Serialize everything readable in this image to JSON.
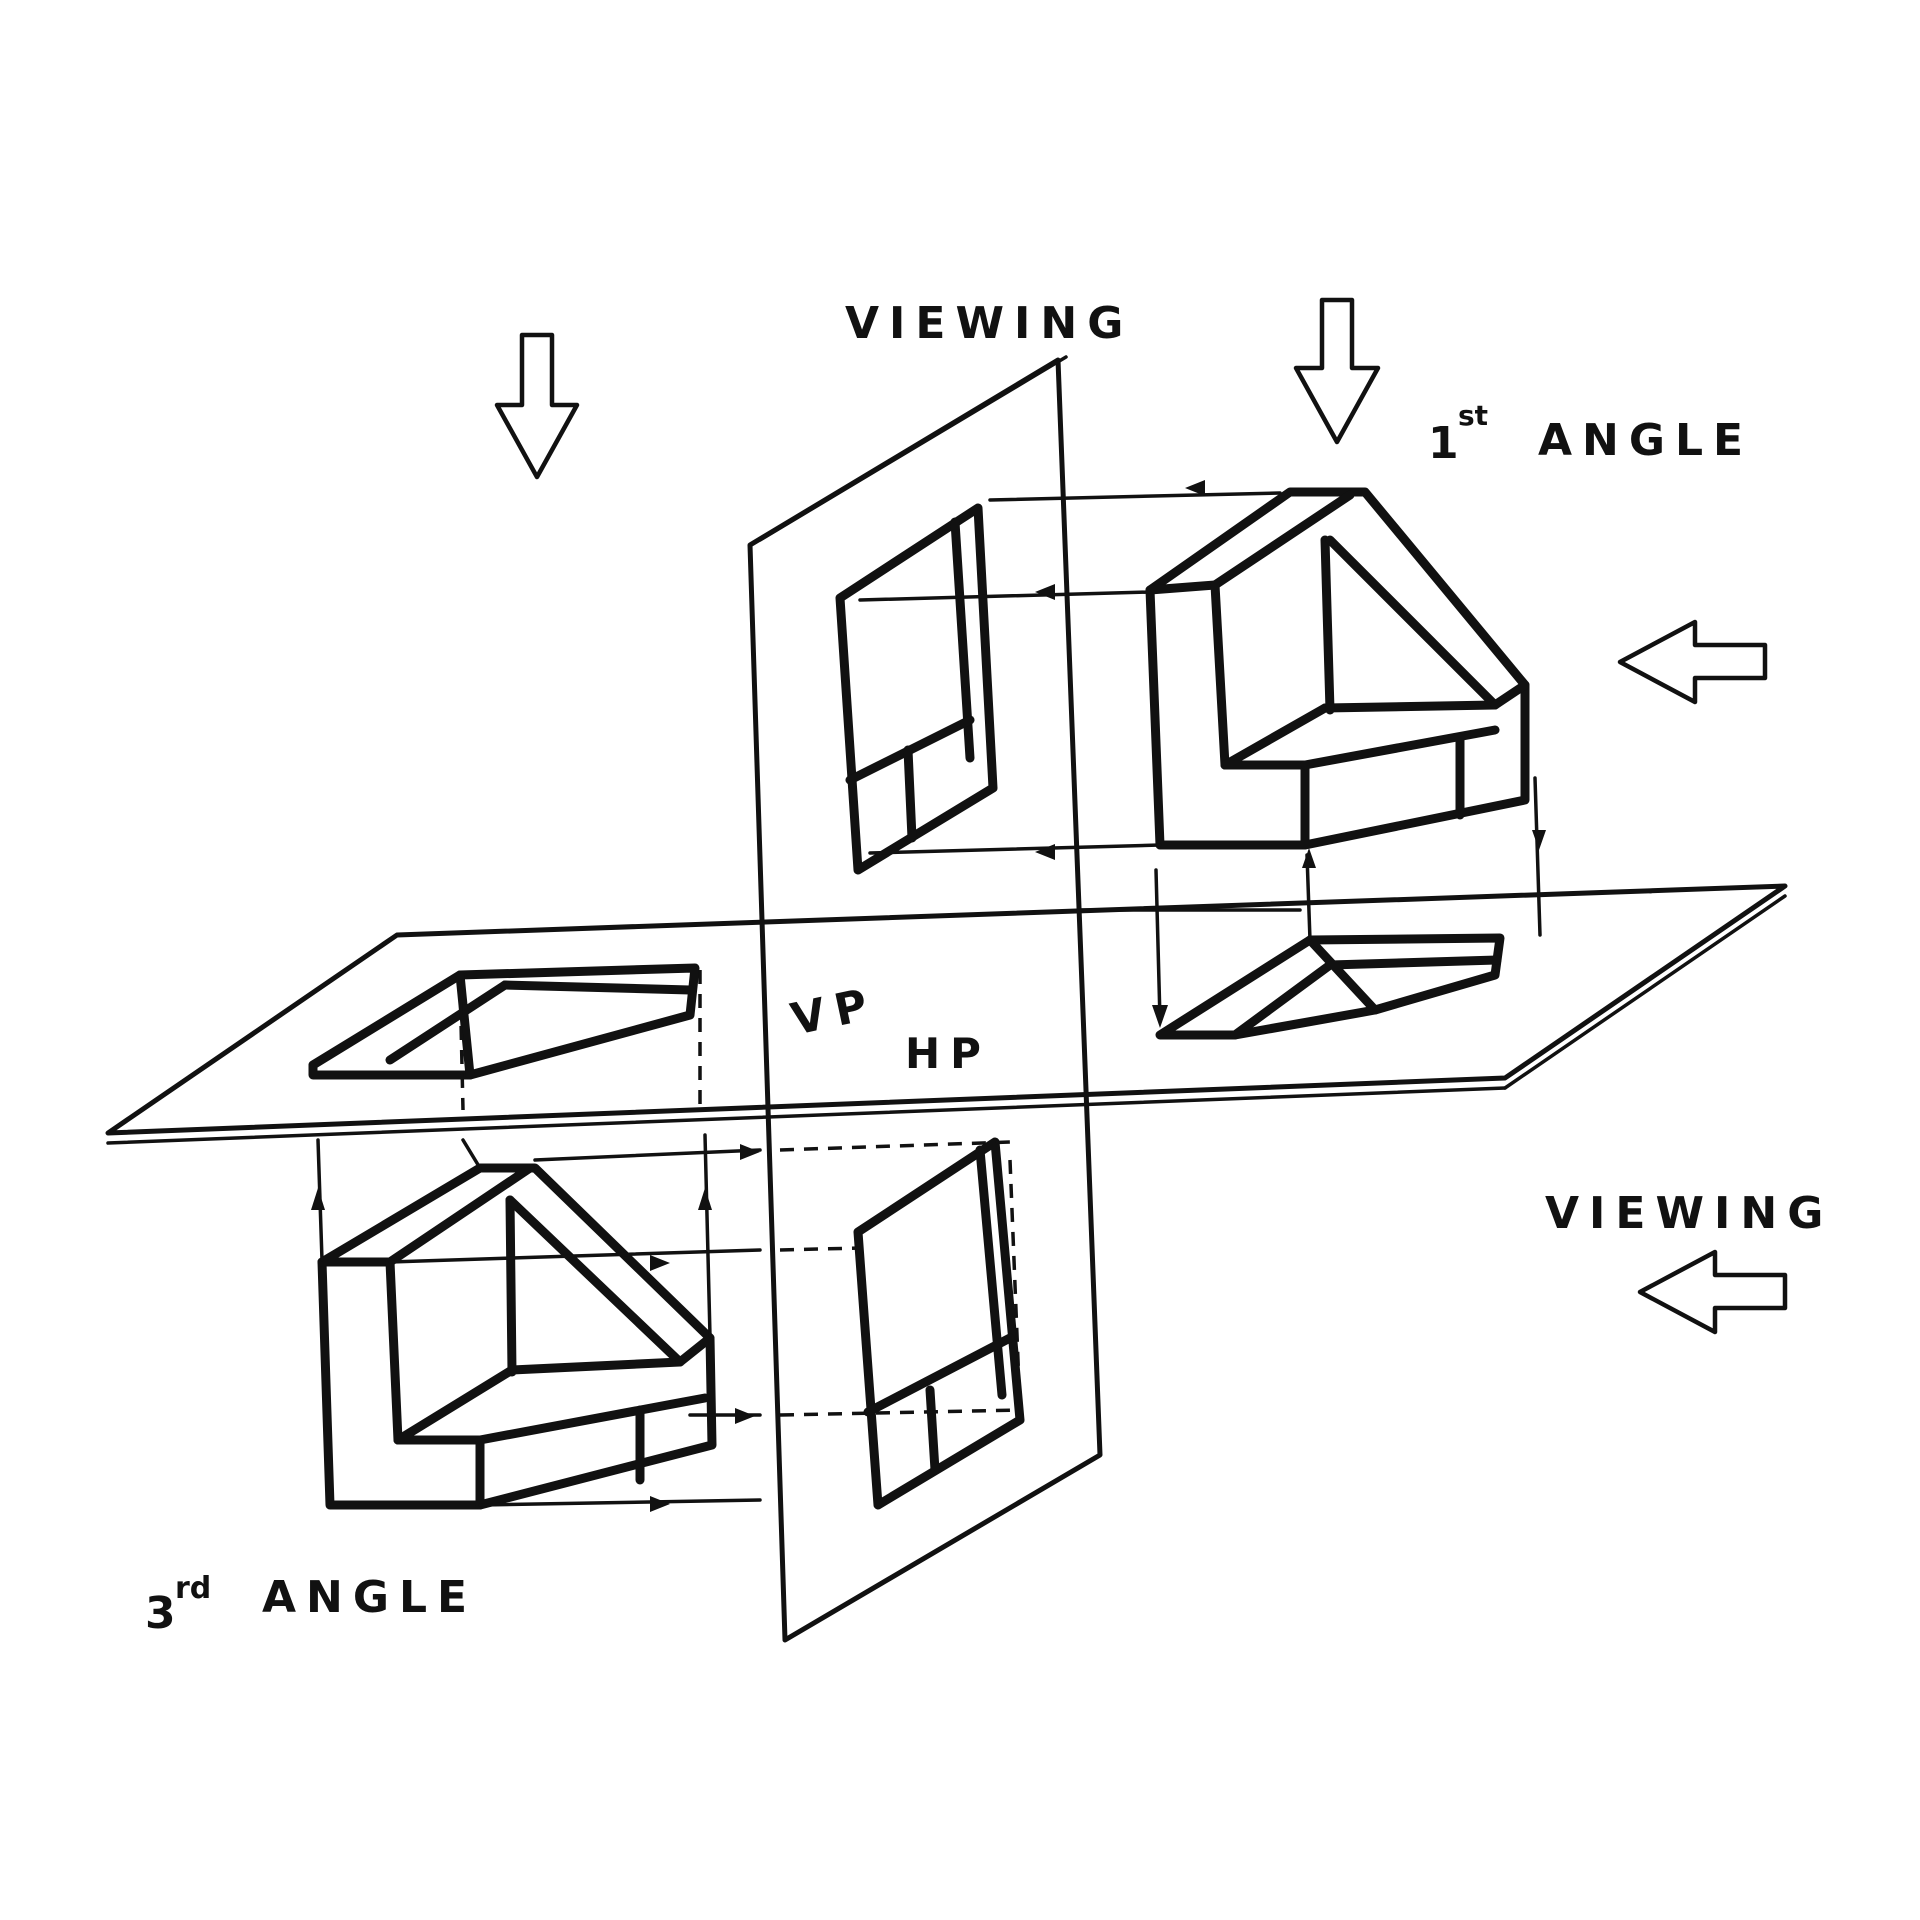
{
  "labels": {
    "viewing_top": "VIEWING",
    "first_angle_num": "1",
    "first_angle_sup": "st",
    "first_angle_text": "ANGLE",
    "vp": "VP",
    "hp": "HP",
    "viewing_right": "VIEWING",
    "third_angle_num": "3",
    "third_angle_sup": "rd",
    "third_angle_text": "ANGLE"
  },
  "colors": {
    "ink": "#111111",
    "background": "#ffffff"
  }
}
